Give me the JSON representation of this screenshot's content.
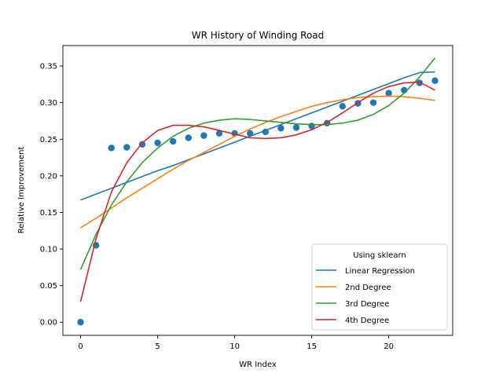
{
  "chart_data": {
    "type": "line",
    "title": "WR History of Winding Road",
    "xlabel": "WR Index",
    "ylabel": "Relative Improvement",
    "xlim": [
      -1.15,
      24.15
    ],
    "ylim": [
      -0.018,
      0.378
    ],
    "xticks": [
      0,
      5,
      10,
      15,
      20
    ],
    "yticks": [
      0.0,
      0.05,
      0.1,
      0.15,
      0.2,
      0.25,
      0.3,
      0.35
    ],
    "ytick_labels": [
      "0.00",
      "0.05",
      "0.10",
      "0.15",
      "0.20",
      "0.25",
      "0.30",
      "0.35"
    ],
    "grid": false,
    "legend": {
      "title": "Using sklearn",
      "placement": "lower-right"
    },
    "scatter": {
      "color": "#1f77b4",
      "x": [
        0,
        1,
        2,
        3,
        4,
        5,
        6,
        7,
        8,
        9,
        10,
        11,
        12,
        13,
        14,
        15,
        16,
        17,
        18,
        19,
        20,
        21,
        22,
        23
      ],
      "y": [
        0.0,
        0.105,
        0.238,
        0.239,
        0.243,
        0.245,
        0.247,
        0.252,
        0.255,
        0.258,
        0.258,
        0.258,
        0.26,
        0.265,
        0.266,
        0.268,
        0.272,
        0.295,
        0.299,
        0.3,
        0.313,
        0.317,
        0.327,
        0.33
      ]
    },
    "x": [
      0,
      1,
      2,
      3,
      4,
      5,
      6,
      7,
      8,
      9,
      10,
      11,
      12,
      13,
      14,
      15,
      16,
      17,
      18,
      19,
      20,
      21,
      22,
      23
    ],
    "series": [
      {
        "name": "Linear Regression",
        "color": "#1f77b4",
        "values": [
          0.167,
          0.175,
          0.183,
          0.191,
          0.199,
          0.207,
          0.214,
          0.222,
          0.23,
          0.238,
          0.246,
          0.254,
          0.262,
          0.27,
          0.278,
          0.286,
          0.294,
          0.302,
          0.31,
          0.318,
          0.326,
          0.334,
          0.341,
          0.342
        ]
      },
      {
        "name": "2nd Degree",
        "color": "#ff7f0e",
        "values": [
          0.129,
          0.142,
          0.156,
          0.17,
          0.183,
          0.196,
          0.209,
          0.221,
          0.232,
          0.243,
          0.254,
          0.264,
          0.273,
          0.281,
          0.288,
          0.295,
          0.3,
          0.304,
          0.307,
          0.308,
          0.309,
          0.308,
          0.306,
          0.303
        ]
      },
      {
        "name": "3rd Degree",
        "color": "#2ca02c",
        "values": [
          0.072,
          0.12,
          0.16,
          0.192,
          0.218,
          0.238,
          0.254,
          0.265,
          0.272,
          0.276,
          0.278,
          0.277,
          0.275,
          0.273,
          0.271,
          0.27,
          0.27,
          0.272,
          0.276,
          0.284,
          0.296,
          0.313,
          0.335,
          0.361
        ]
      },
      {
        "name": "4th Degree",
        "color": "#d62728",
        "values": [
          0.028,
          0.114,
          0.178,
          0.218,
          0.245,
          0.262,
          0.269,
          0.269,
          0.267,
          0.262,
          0.257,
          0.252,
          0.251,
          0.252,
          0.256,
          0.263,
          0.273,
          0.286,
          0.3,
          0.313,
          0.322,
          0.327,
          0.328,
          0.317
        ]
      }
    ]
  }
}
